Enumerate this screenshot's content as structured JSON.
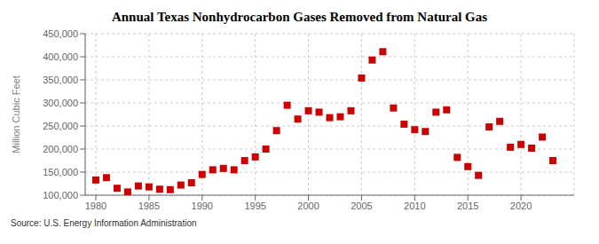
{
  "chart_data": {
    "type": "scatter",
    "title": "Annual Texas Nonhydrocarbon Gases Removed from Natural Gas",
    "y_label": "Million Cubic Feet",
    "annotations": [
      "Source: U.S. Energy Information Administration"
    ],
    "x": [
      1980,
      1981,
      1982,
      1983,
      1984,
      1985,
      1986,
      1987,
      1988,
      1989,
      1990,
      1991,
      1992,
      1993,
      1994,
      1995,
      1996,
      1997,
      1998,
      1999,
      2000,
      2001,
      2002,
      2003,
      2004,
      2005,
      2006,
      2007,
      2008,
      2009,
      2010,
      2011,
      2012,
      2013,
      2014,
      2015,
      2016,
      2017,
      2018,
      2019,
      2020,
      2021,
      2022,
      2023
    ],
    "values": [
      133000,
      138000,
      115000,
      107000,
      120000,
      118000,
      113000,
      112000,
      122000,
      127000,
      145000,
      155000,
      158000,
      155000,
      175000,
      183000,
      200000,
      240000,
      295000,
      265000,
      283000,
      280000,
      268000,
      270000,
      283000,
      354000,
      393000,
      411000,
      289000,
      254000,
      242000,
      238000,
      280000,
      285000,
      182000,
      162000,
      143000,
      248000,
      260000,
      204000,
      210000,
      202000,
      226000,
      175000
    ],
    "color": "#cc0000",
    "marker": "square",
    "xlim": [
      1979,
      2025
    ],
    "xticks": [
      1980,
      1985,
      1990,
      1995,
      2000,
      2005,
      2010,
      2015,
      2020
    ],
    "ylim": [
      100000,
      450000
    ],
    "yticks": [
      {
        "value": 100000,
        "label": "100,000"
      },
      {
        "value": 150000,
        "label": "150,000"
      },
      {
        "value": 200000,
        "label": "200,000"
      },
      {
        "value": 250000,
        "label": "250,000"
      },
      {
        "value": 300000,
        "label": "300,000"
      },
      {
        "value": 350000,
        "label": "350,000"
      },
      {
        "value": 400000,
        "label": "400,000"
      },
      {
        "value": 450000,
        "label": "450,000"
      }
    ],
    "grid": true
  }
}
